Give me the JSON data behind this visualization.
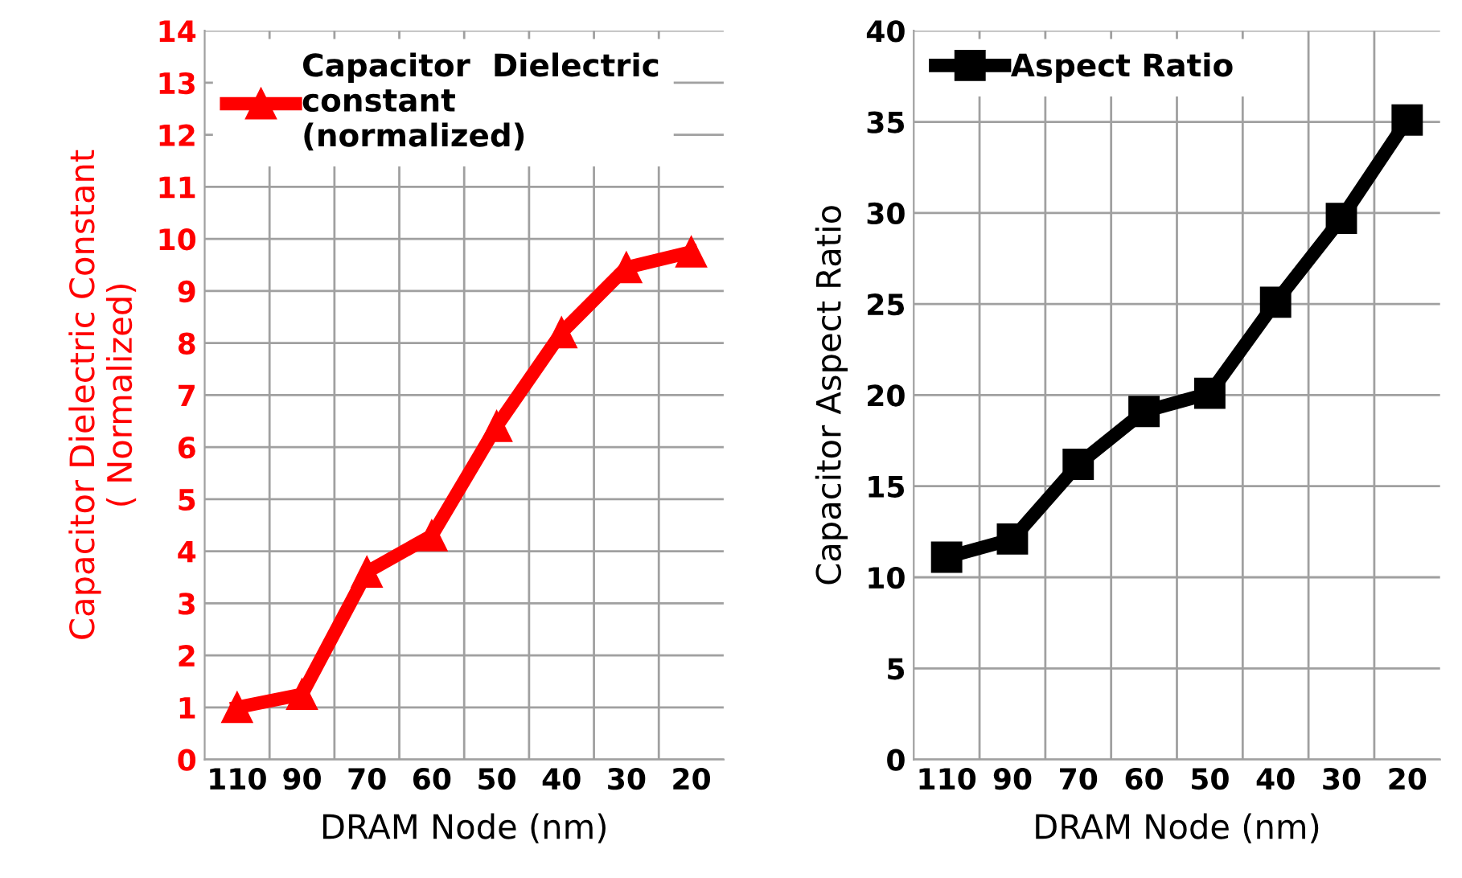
{
  "chart_data": [
    {
      "type": "line",
      "categories": [
        "110",
        "90",
        "70",
        "60",
        "50",
        "40",
        "30",
        "20"
      ],
      "xlabel": "DRAM Node (nm)",
      "ylabel": "Capacitor Dielectric Constant\n( Normalized)",
      "ylim": [
        0,
        14
      ],
      "yticks": [
        0,
        1,
        2,
        3,
        4,
        5,
        6,
        7,
        8,
        9,
        10,
        11,
        12,
        13,
        14
      ],
      "grid": true,
      "legend": "top left",
      "marker": "triangle",
      "series": [
        {
          "name": "Capacitor  Dielectric\nconstant\n(normalized)",
          "color": "#ff0000",
          "values": [
            1.0,
            1.25,
            3.6,
            4.3,
            6.4,
            8.2,
            9.45,
            9.75
          ]
        }
      ]
    },
    {
      "type": "line",
      "categories": [
        "110",
        "90",
        "70",
        "60",
        "50",
        "40",
        "30",
        "20"
      ],
      "xlabel": "DRAM Node (nm)",
      "ylabel": "Capacitor Aspect Ratio",
      "ylim": [
        0,
        40
      ],
      "yticks": [
        0,
        5,
        10,
        15,
        20,
        25,
        30,
        35,
        40
      ],
      "grid": true,
      "legend": "top left",
      "marker": "square",
      "series": [
        {
          "name": "Aspect Ratio",
          "color": "#000000",
          "values": [
            11.1,
            12.1,
            16.2,
            19.1,
            20.1,
            25.1,
            29.7,
            35.1
          ]
        }
      ]
    }
  ]
}
